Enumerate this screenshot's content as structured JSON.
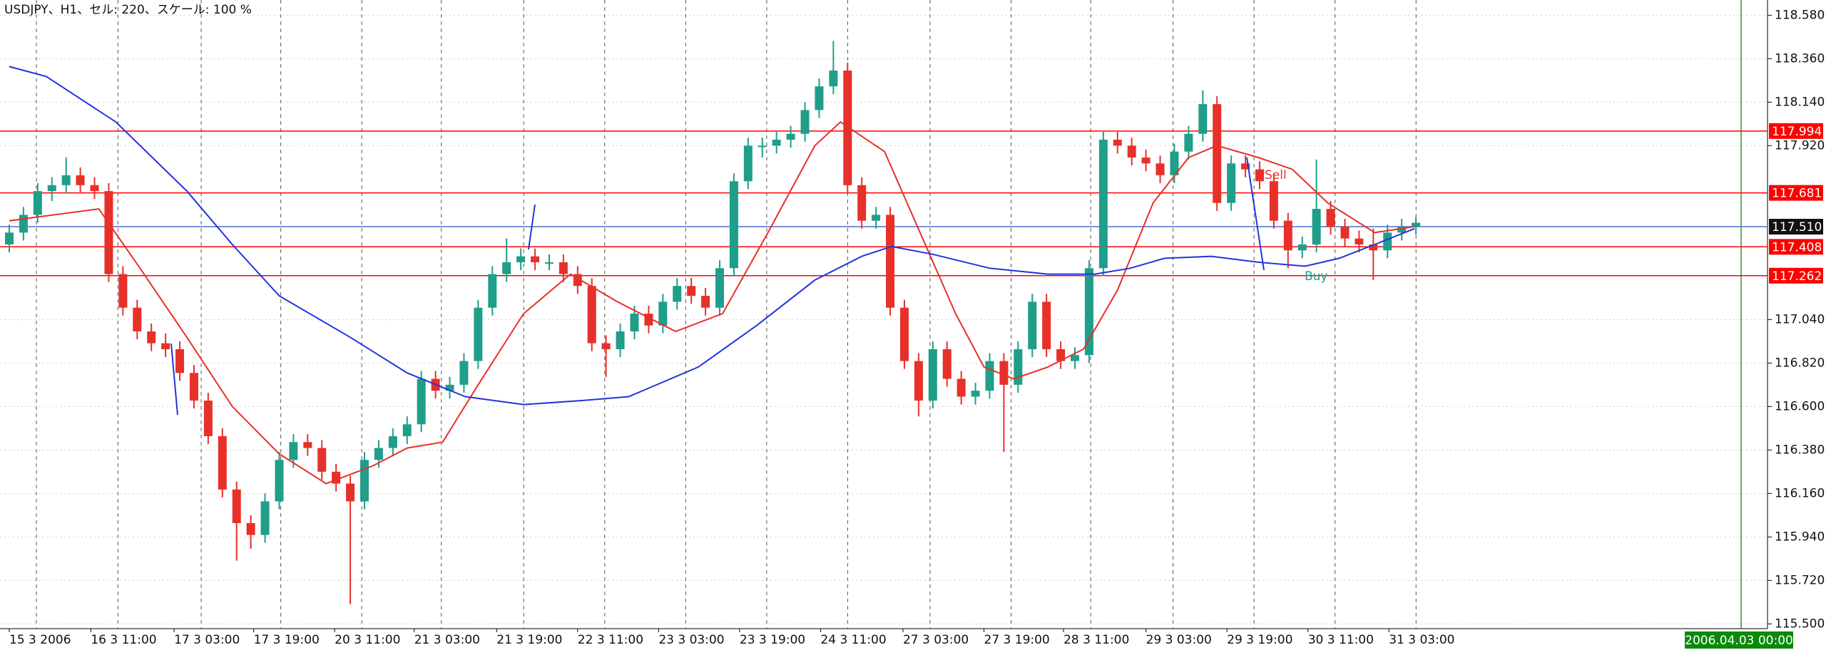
{
  "chart_data": {
    "type": "candlestick",
    "title": "USDJPY、H1、セル: 220、スケール: 100 %",
    "up_color": "#1f9e8a",
    "down_color": "#e8302a",
    "ylim": [
      115.476,
      118.657
    ],
    "yticks": [
      {
        "value": 115.5,
        "label": "115.500"
      },
      {
        "value": 115.72,
        "label": "115.720"
      },
      {
        "value": 115.94,
        "label": "115.940"
      },
      {
        "value": 116.16,
        "label": "116.160"
      },
      {
        "value": 116.38,
        "label": "116.380"
      },
      {
        "value": 116.6,
        "label": "116.600"
      },
      {
        "value": 116.82,
        "label": "116.820"
      },
      {
        "value": 117.04,
        "label": "117.040"
      },
      {
        "value": 117.92,
        "label": "117.920"
      },
      {
        "value": 118.14,
        "label": "118.140"
      },
      {
        "value": 118.36,
        "label": "118.360"
      },
      {
        "value": 118.58,
        "label": "118.580"
      }
    ],
    "xticks": [
      {
        "value": 0,
        "label": "15 3 2006"
      },
      {
        "value": 5.74,
        "label": "16 3 11:00"
      },
      {
        "value": 11.6,
        "label": "17 3 03:00"
      },
      {
        "value": 17.2,
        "label": "17 3 19:00"
      },
      {
        "value": 22.9,
        "label": "20 3 11:00"
      },
      {
        "value": 28.5,
        "label": "21 3 03:00"
      },
      {
        "value": 34.3,
        "label": "21 3 19:00"
      },
      {
        "value": 40,
        "label": "22 3 11:00"
      },
      {
        "value": 45.7,
        "label": "23 3 03:00"
      },
      {
        "value": 51.4,
        "label": "23 3 19:00"
      },
      {
        "value": 57.1,
        "label": "24 3 11:00"
      },
      {
        "value": 62.9,
        "label": "27 3 03:00"
      },
      {
        "value": 68.6,
        "label": "27 3 19:00"
      },
      {
        "value": 74.2,
        "label": "28 3 11:00"
      },
      {
        "value": 80,
        "label": "29 3 03:00"
      },
      {
        "value": 85.7,
        "label": "29 3 19:00"
      },
      {
        "value": 91.4,
        "label": "30 3 11:00"
      },
      {
        "value": 97.1,
        "label": "31 3 03:00"
      }
    ],
    "ohlc": [
      [
        117.42,
        117.52,
        117.38,
        117.48
      ],
      [
        117.48,
        117.61,
        117.44,
        117.57
      ],
      [
        117.57,
        117.73,
        117.53,
        117.69
      ],
      [
        117.69,
        117.76,
        117.64,
        117.72
      ],
      [
        117.72,
        117.86,
        117.68,
        117.77
      ],
      [
        117.77,
        117.81,
        117.68,
        117.72
      ],
      [
        117.72,
        117.76,
        117.65,
        117.69
      ],
      [
        117.69,
        117.73,
        117.23,
        117.27
      ],
      [
        117.27,
        117.31,
        117.06,
        117.1
      ],
      [
        117.1,
        117.14,
        116.94,
        116.98
      ],
      [
        116.98,
        117.02,
        116.88,
        116.92
      ],
      [
        116.92,
        116.97,
        116.85,
        116.89
      ],
      [
        116.89,
        116.93,
        116.73,
        116.77
      ],
      [
        116.77,
        116.81,
        116.59,
        116.63
      ],
      [
        116.63,
        116.67,
        116.41,
        116.45
      ],
      [
        116.45,
        116.49,
        116.14,
        116.18
      ],
      [
        116.18,
        116.22,
        115.82,
        116.01
      ],
      [
        116.01,
        116.05,
        115.88,
        115.95
      ],
      [
        115.95,
        116.16,
        115.91,
        116.12
      ],
      [
        116.12,
        116.37,
        116.08,
        116.33
      ],
      [
        116.33,
        116.46,
        116.29,
        116.42
      ],
      [
        116.42,
        116.46,
        116.35,
        116.39
      ],
      [
        116.39,
        116.43,
        116.23,
        116.27
      ],
      [
        116.27,
        116.31,
        116.17,
        116.21
      ],
      [
        116.21,
        116.25,
        115.6,
        116.12
      ],
      [
        116.12,
        116.37,
        116.08,
        116.33
      ],
      [
        116.33,
        116.43,
        116.29,
        116.39
      ],
      [
        116.39,
        116.49,
        116.35,
        116.45
      ],
      [
        116.45,
        116.55,
        116.41,
        116.51
      ],
      [
        116.51,
        116.78,
        116.47,
        116.74
      ],
      [
        116.74,
        116.78,
        116.64,
        116.68
      ],
      [
        116.68,
        116.75,
        116.64,
        116.71
      ],
      [
        116.71,
        116.87,
        116.67,
        116.83
      ],
      [
        116.83,
        117.14,
        116.79,
        117.1
      ],
      [
        117.1,
        117.31,
        117.06,
        117.27
      ],
      [
        117.27,
        117.45,
        117.23,
        117.33
      ],
      [
        117.33,
        117.4,
        117.29,
        117.36
      ],
      [
        117.36,
        117.4,
        117.29,
        117.33
      ],
      [
        117.33,
        117.37,
        117.29,
        117.33
      ],
      [
        117.33,
        117.37,
        117.23,
        117.27
      ],
      [
        117.27,
        117.31,
        117.17,
        117.21
      ],
      [
        117.21,
        117.25,
        116.88,
        116.92
      ],
      [
        116.92,
        116.96,
        116.75,
        116.89
      ],
      [
        116.89,
        117.02,
        116.85,
        116.98
      ],
      [
        116.98,
        117.11,
        116.94,
        117.07
      ],
      [
        117.07,
        117.11,
        116.97,
        117.01
      ],
      [
        117.01,
        117.17,
        116.97,
        117.13
      ],
      [
        117.13,
        117.25,
        117.09,
        117.21
      ],
      [
        117.21,
        117.25,
        117.12,
        117.16
      ],
      [
        117.16,
        117.2,
        117.06,
        117.1
      ],
      [
        117.1,
        117.34,
        117.06,
        117.3
      ],
      [
        117.3,
        117.78,
        117.26,
        117.74
      ],
      [
        117.74,
        117.96,
        117.7,
        117.92
      ],
      [
        117.92,
        117.96,
        117.86,
        117.92
      ],
      [
        117.92,
        117.99,
        117.88,
        117.95
      ],
      [
        117.95,
        118.02,
        117.91,
        117.98
      ],
      [
        117.98,
        118.14,
        117.94,
        118.1
      ],
      [
        118.1,
        118.26,
        118.06,
        118.22
      ],
      [
        118.22,
        118.45,
        118.18,
        118.3
      ],
      [
        118.3,
        118.34,
        117.68,
        117.72
      ],
      [
        117.72,
        117.76,
        117.5,
        117.54
      ],
      [
        117.54,
        117.61,
        117.5,
        117.57
      ],
      [
        117.57,
        117.61,
        117.06,
        117.1
      ],
      [
        117.1,
        117.14,
        116.79,
        116.83
      ],
      [
        116.83,
        116.87,
        116.55,
        116.63
      ],
      [
        116.63,
        116.93,
        116.59,
        116.89
      ],
      [
        116.89,
        116.93,
        116.7,
        116.74
      ],
      [
        116.74,
        116.78,
        116.61,
        116.65
      ],
      [
        116.65,
        116.72,
        116.61,
        116.68
      ],
      [
        116.68,
        116.87,
        116.64,
        116.83
      ],
      [
        116.83,
        116.87,
        116.37,
        116.71
      ],
      [
        116.71,
        116.93,
        116.67,
        116.89
      ],
      [
        116.89,
        117.17,
        116.85,
        117.13
      ],
      [
        117.13,
        117.17,
        116.85,
        116.89
      ],
      [
        116.89,
        116.93,
        116.79,
        116.83
      ],
      [
        116.83,
        116.9,
        116.79,
        116.86
      ],
      [
        116.86,
        117.34,
        116.82,
        117.3
      ],
      [
        117.3,
        117.99,
        117.26,
        117.95
      ],
      [
        117.95,
        117.99,
        117.88,
        117.92
      ],
      [
        117.92,
        117.96,
        117.82,
        117.86
      ],
      [
        117.86,
        117.9,
        117.79,
        117.83
      ],
      [
        117.83,
        117.87,
        117.73,
        117.77
      ],
      [
        117.77,
        117.93,
        117.73,
        117.89
      ],
      [
        117.89,
        118.02,
        117.85,
        117.98
      ],
      [
        117.98,
        118.2,
        117.94,
        118.13
      ],
      [
        118.13,
        118.17,
        117.59,
        117.63
      ],
      [
        117.63,
        117.87,
        117.59,
        117.83
      ],
      [
        117.83,
        117.87,
        117.76,
        117.8
      ],
      [
        117.8,
        117.84,
        117.7,
        117.74
      ],
      [
        117.74,
        117.78,
        117.5,
        117.54
      ],
      [
        117.54,
        117.58,
        117.3,
        117.39
      ],
      [
        117.39,
        117.46,
        117.35,
        117.42
      ],
      [
        117.42,
        117.85,
        117.38,
        117.6
      ],
      [
        117.6,
        117.64,
        117.47,
        117.51
      ],
      [
        117.51,
        117.55,
        117.41,
        117.45
      ],
      [
        117.45,
        117.49,
        117.38,
        117.42
      ],
      [
        117.42,
        117.5,
        117.24,
        117.39
      ],
      [
        117.39,
        117.52,
        117.35,
        117.48
      ],
      [
        117.48,
        117.55,
        117.44,
        117.51
      ],
      [
        117.51,
        117.56,
        117.47,
        117.53
      ]
    ],
    "lines": [
      {
        "color": "#e8302a",
        "x": [
          0,
          6.3,
          9.2,
          12.5,
          15.7,
          19,
          22.3,
          25.6,
          28,
          30.5,
          33,
          36.2,
          39.5,
          42.8,
          46.9,
          50.2,
          53.4,
          56.7,
          58.5,
          61.6,
          64.1,
          66.6,
          68.6,
          70.7,
          73.1,
          75.6,
          78,
          80.5,
          83,
          85,
          87.9,
          90.3,
          92.8,
          96.1,
          98.9
        ],
        "values": [
          117.54,
          117.6,
          117.3,
          116.95,
          116.6,
          116.36,
          116.21,
          116.3,
          116.39,
          116.42,
          116.71,
          117.07,
          117.27,
          117.13,
          116.98,
          117.07,
          117.48,
          117.92,
          118.04,
          117.89,
          117.48,
          117.07,
          116.8,
          116.74,
          116.8,
          116.89,
          117.19,
          117.63,
          117.86,
          117.92,
          117.86,
          117.8,
          117.63,
          117.48,
          117.51
        ]
      },
      {
        "color": "#2233dd",
        "x": [
          0,
          2.6,
          7.5,
          12.5,
          15.7,
          19,
          24,
          28,
          32.1,
          36.2,
          40.3,
          43.6,
          48.5,
          52.6,
          56.7,
          60,
          62.1,
          65,
          69,
          73.1,
          76.4,
          78.9,
          81.3,
          84.6,
          87.9,
          91.2,
          93.6,
          96.1,
          98.9
        ],
        "values": [
          118.32,
          118.27,
          118.04,
          117.69,
          117.42,
          117.16,
          116.95,
          116.77,
          116.65,
          116.61,
          116.63,
          116.65,
          116.8,
          117.01,
          117.24,
          117.36,
          117.41,
          117.37,
          117.3,
          117.27,
          117.27,
          117.3,
          117.35,
          117.36,
          117.33,
          117.31,
          117.35,
          117.42,
          117.5
        ]
      }
    ],
    "levels": [
      {
        "value": 117.994,
        "color": "#ff0000"
      },
      {
        "value": 117.681,
        "color": "#ff0000"
      },
      {
        "value": 117.51,
        "label": "117.510",
        "color": "#111111",
        "line": "#4a6fd0"
      },
      {
        "value": 117.408,
        "color": "#ff0000"
      },
      {
        "value": 117.262,
        "color": "#ff0000"
      }
    ],
    "annotations": [
      "Sell",
      "Buy"
    ],
    "date_label": "2006.04.03 00:00"
  }
}
